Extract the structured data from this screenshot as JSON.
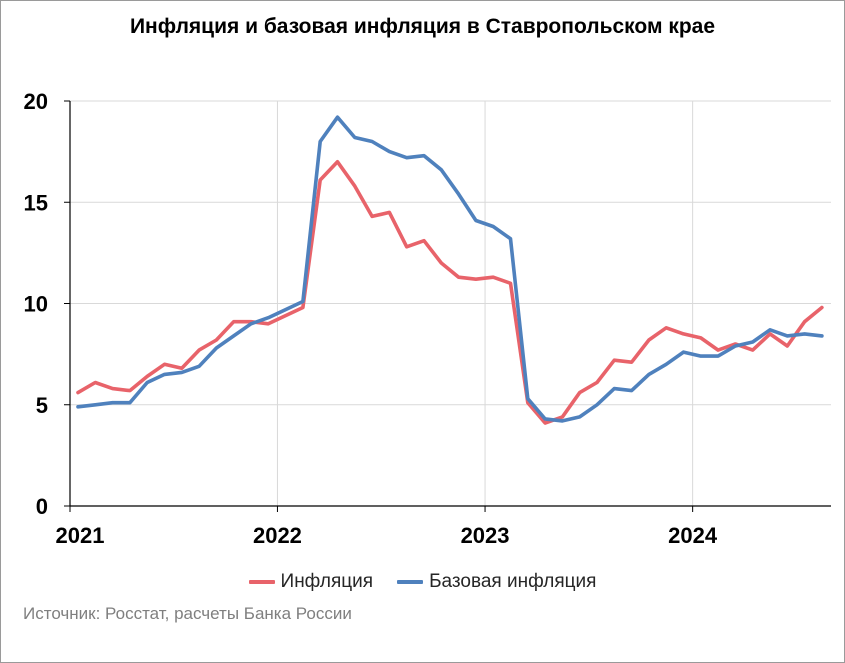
{
  "chart_data": {
    "type": "line",
    "title": "Инфляция и базовая инфляция в Ставропольском крае",
    "x_tick_labels": [
      "2021",
      "2022",
      "2023",
      "2024"
    ],
    "yticks": [
      "0",
      "5",
      "10",
      "15",
      "20"
    ],
    "ylim": [
      0,
      20
    ],
    "grid": true,
    "legend_position": "bottom",
    "series": [
      {
        "name": "Инфляция",
        "color": "#E8636A",
        "values": [
          5.6,
          6.1,
          5.8,
          5.7,
          6.4,
          7.0,
          6.8,
          7.7,
          8.2,
          9.1,
          9.1,
          9.0,
          9.4,
          9.8,
          16.1,
          17.0,
          15.8,
          14.3,
          14.5,
          12.8,
          13.1,
          12.0,
          11.3,
          11.2,
          11.3,
          11.0,
          5.1,
          4.1,
          4.4,
          5.6,
          6.1,
          7.2,
          7.1,
          8.2,
          8.8,
          8.5,
          8.3,
          7.7,
          8.0,
          7.7,
          8.5,
          7.9,
          9.1,
          9.8
        ]
      },
      {
        "name": "Базовая инфляция",
        "color": "#4F81BD",
        "values": [
          4.9,
          5.0,
          5.1,
          5.1,
          6.1,
          6.5,
          6.6,
          6.9,
          7.8,
          8.4,
          9.0,
          9.3,
          9.7,
          10.1,
          18.0,
          19.2,
          18.2,
          18.0,
          17.5,
          17.2,
          17.3,
          16.6,
          15.4,
          14.1,
          13.8,
          13.2,
          5.3,
          4.3,
          4.2,
          4.4,
          5.0,
          5.8,
          5.7,
          6.5,
          7.0,
          7.6,
          7.4,
          7.4,
          7.9,
          8.1,
          8.7,
          8.4,
          8.5,
          8.4
        ]
      }
    ]
  },
  "legend": {
    "items": [
      {
        "label": "Инфляция",
        "color": "#E8636A"
      },
      {
        "label": "Базовая инфляция",
        "color": "#4F81BD"
      }
    ]
  },
  "source": "Источник: Росстат, расчеты Банка России"
}
